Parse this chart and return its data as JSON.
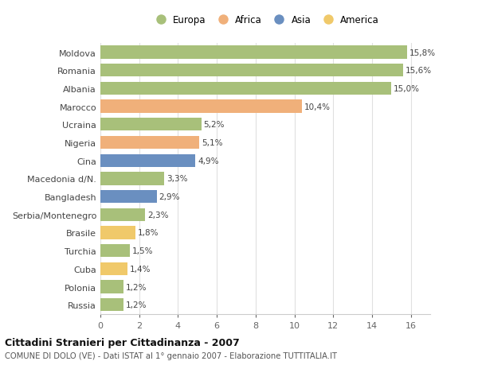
{
  "categories": [
    "Russia",
    "Polonia",
    "Cuba",
    "Turchia",
    "Brasile",
    "Serbia/Montenegro",
    "Bangladesh",
    "Macedonia d/N.",
    "Cina",
    "Nigeria",
    "Ucraina",
    "Marocco",
    "Albania",
    "Romania",
    "Moldova"
  ],
  "values": [
    1.2,
    1.2,
    1.4,
    1.5,
    1.8,
    2.3,
    2.9,
    3.3,
    4.9,
    5.1,
    5.2,
    10.4,
    15.0,
    15.6,
    15.8
  ],
  "colors": [
    "#a8c07a",
    "#a8c07a",
    "#f0c96a",
    "#a8c07a",
    "#f0c96a",
    "#a8c07a",
    "#6a8fc0",
    "#a8c07a",
    "#6a8fc0",
    "#f0b07a",
    "#a8c07a",
    "#f0b07a",
    "#a8c07a",
    "#a8c07a",
    "#a8c07a"
  ],
  "labels": [
    "1,2%",
    "1,2%",
    "1,4%",
    "1,5%",
    "1,8%",
    "2,3%",
    "2,9%",
    "3,3%",
    "4,9%",
    "5,1%",
    "5,2%",
    "10,4%",
    "15,0%",
    "15,6%",
    "15,8%"
  ],
  "legend": [
    {
      "label": "Europa",
      "color": "#a8c07a"
    },
    {
      "label": "Africa",
      "color": "#f0b07a"
    },
    {
      "label": "Asia",
      "color": "#6a8fc0"
    },
    {
      "label": "America",
      "color": "#f0c96a"
    }
  ],
  "xlim": [
    0,
    17
  ],
  "xticks": [
    0,
    2,
    4,
    6,
    8,
    10,
    12,
    14,
    16
  ],
  "title": "Cittadini Stranieri per Cittadinanza - 2007",
  "subtitle": "COMUNE DI DOLO (VE) - Dati ISTAT al 1° gennaio 2007 - Elaborazione TUTTITALIA.IT",
  "background_color": "#ffffff",
  "grid_color": "#e0e0e0",
  "bar_height": 0.72
}
